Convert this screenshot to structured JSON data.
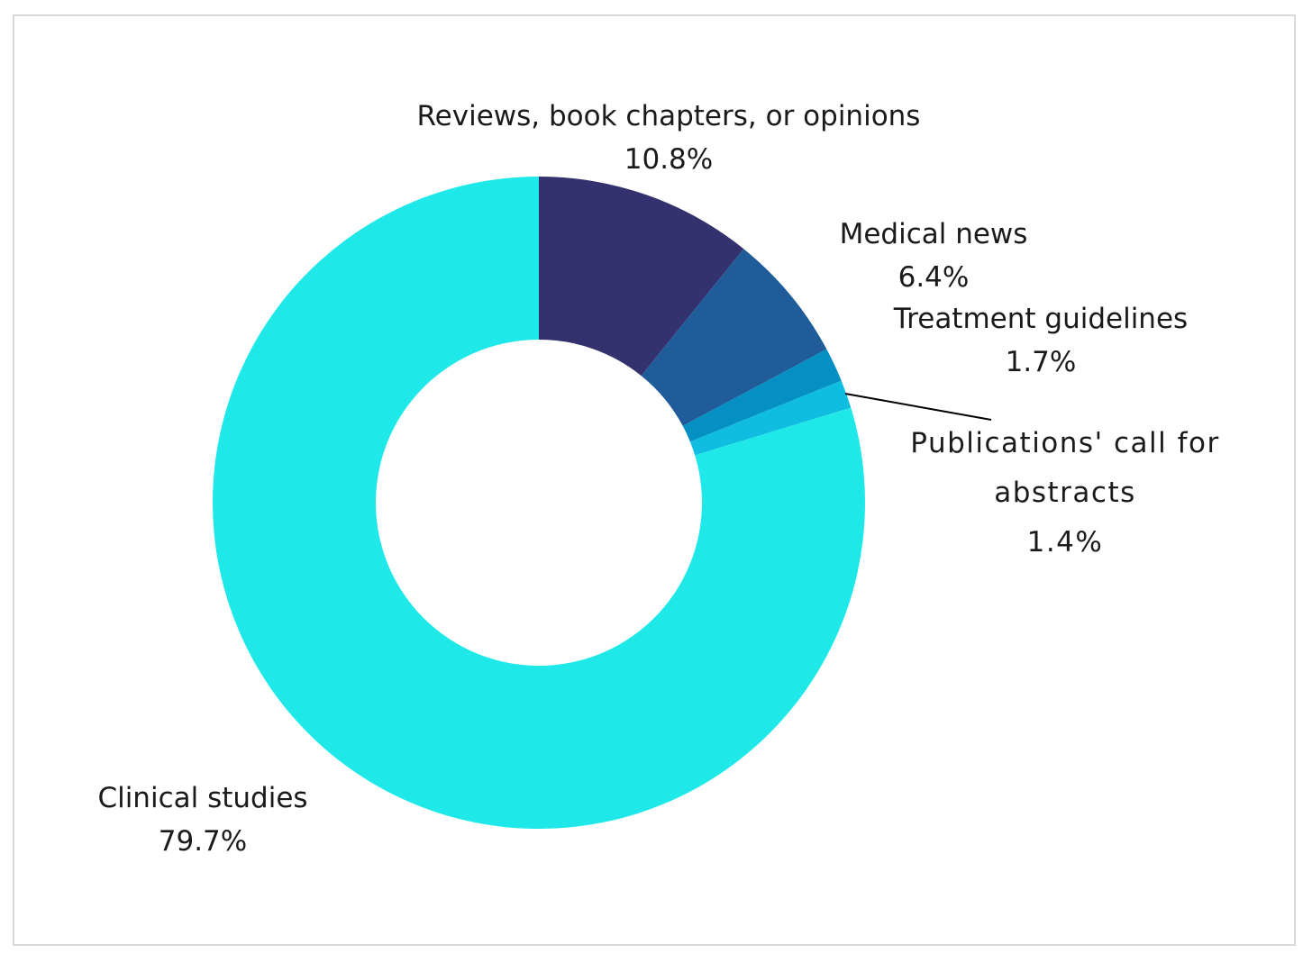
{
  "chart_data": {
    "type": "pie",
    "variant": "donut",
    "title": "",
    "slices": [
      {
        "label": "Reviews, book chapters, or opinions",
        "value": 10.8,
        "value_label": "10.8%",
        "color": "#33316e"
      },
      {
        "label": "Medical news",
        "value": 6.4,
        "value_label": "6.4%",
        "color": "#1f5c99"
      },
      {
        "label": "Treatment guidelines",
        "value": 1.7,
        "value_label": "1.7%",
        "color": "#0590c3"
      },
      {
        "label": "Publications' call for abstracts",
        "value": 1.4,
        "value_label": "1.4%",
        "color": "#0fbde0"
      },
      {
        "label": "Clinical studies",
        "value": 79.7,
        "value_label": "79.7%",
        "color": "#1ee8e8"
      }
    ],
    "legend": "none",
    "data_labels": "outside"
  }
}
